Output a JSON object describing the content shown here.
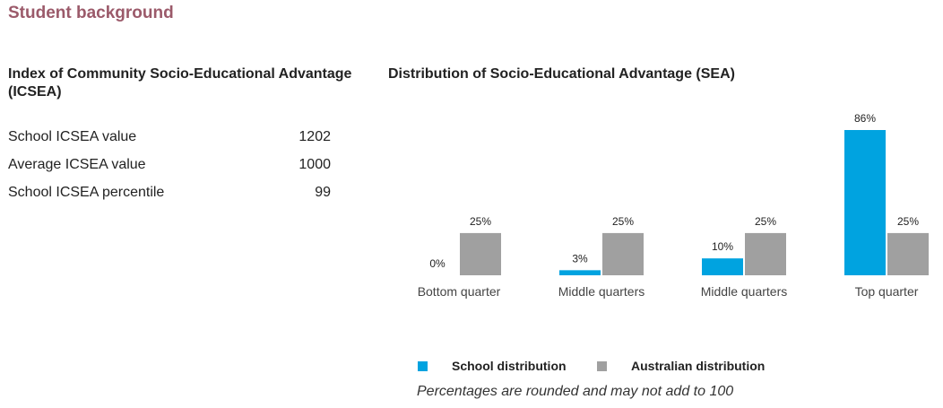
{
  "section_title": "Student background",
  "icsea": {
    "title": "Index of Community Socio-Educational Advantage (ICSEA)",
    "rows": [
      {
        "label": "School ICSEA value",
        "value": "1202"
      },
      {
        "label": "Average ICSEA value",
        "value": "1000"
      },
      {
        "label": "School ICSEA percentile",
        "value": "99"
      }
    ]
  },
  "chart_data": {
    "type": "bar",
    "title": "Distribution of Socio-Educational Advantage (SEA)",
    "categories": [
      "Bottom quarter",
      "Middle quarters",
      "Middle quarters",
      "Top quarter"
    ],
    "series": [
      {
        "name": "School distribution",
        "values": [
          0,
          3,
          10,
          86
        ],
        "labels": [
          "0%",
          "3%",
          "10%",
          "86%"
        ],
        "color": "#00a3e0"
      },
      {
        "name": "Australian distribution",
        "values": [
          25,
          25,
          25,
          25
        ],
        "labels": [
          "25%",
          "25%",
          "25%",
          "25%"
        ],
        "color": "#a0a0a0"
      }
    ],
    "ylim": [
      0,
      86
    ],
    "grid": false,
    "legend_position": "bottom"
  },
  "note": "Percentages are rounded and may not add to 100"
}
